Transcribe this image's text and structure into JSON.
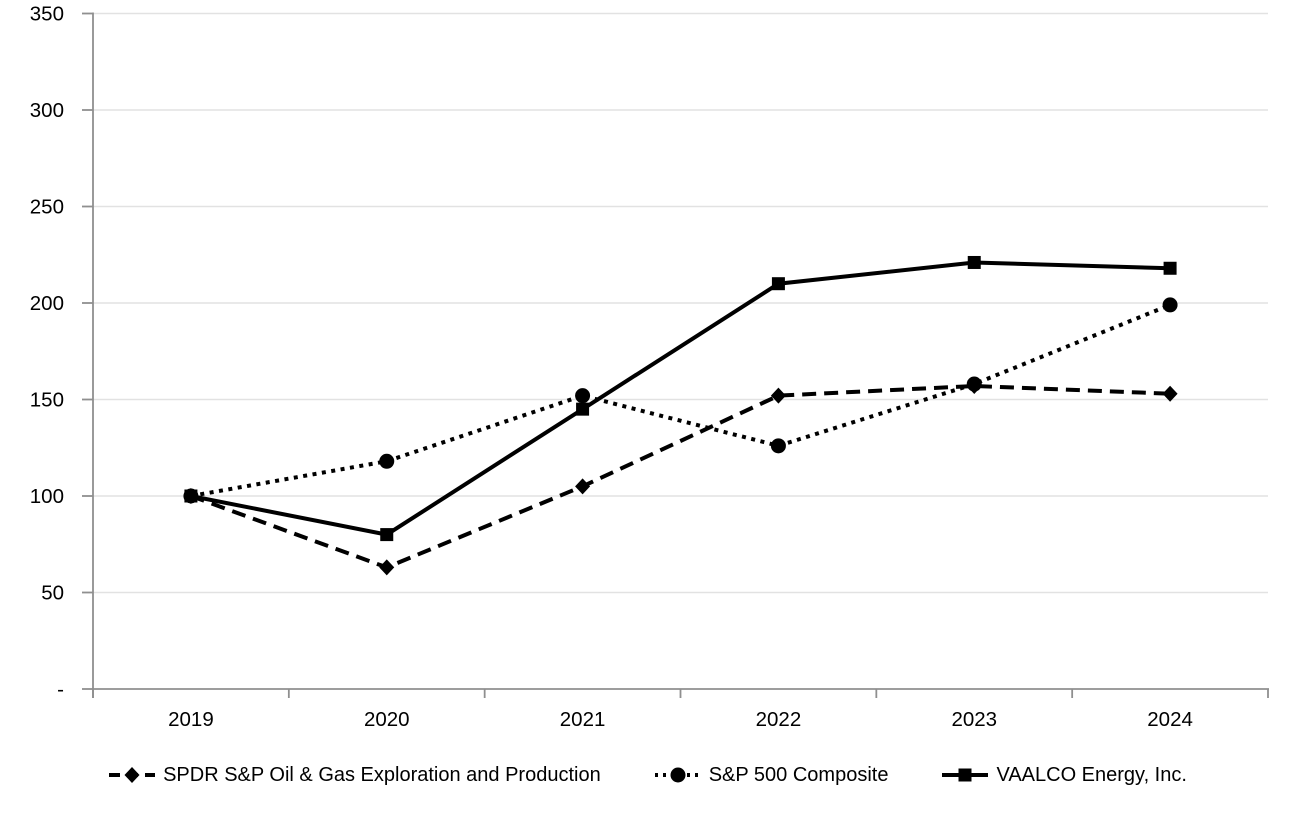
{
  "chart_data": {
    "type": "line",
    "title": "",
    "xlabel": "",
    "ylabel": "",
    "categories": [
      "2019",
      "2020",
      "2021",
      "2022",
      "2023",
      "2024"
    ],
    "series": [
      {
        "name": "SPDR S&P Oil & Gas Exploration and Production",
        "slug": "spdr-sp-oil-gas",
        "marker": "diamond",
        "line_style": "dashed",
        "values": [
          100,
          63,
          105,
          152,
          157,
          153
        ]
      },
      {
        "name": "S&P 500 Composite",
        "slug": "sp-500-composite",
        "marker": "circle",
        "line_style": "dotted",
        "values": [
          100,
          118,
          152,
          126,
          158,
          199
        ]
      },
      {
        "name": "VAALCO Energy, Inc.",
        "slug": "vaalco-energy",
        "marker": "square",
        "line_style": "solid",
        "values": [
          100,
          80,
          145,
          210,
          221,
          218
        ]
      }
    ],
    "ylim": [
      0,
      350
    ],
    "ytick_step": 50,
    "ytick_labels": [
      "-",
      "50",
      "100",
      "150",
      "200",
      "250",
      "300",
      "350"
    ],
    "grid": "horizontal",
    "legend_position": "bottom",
    "colors": {
      "series_line": "#000000",
      "axis": "#8f8f8f",
      "gridline": "#e2e2e2",
      "text": "#000000",
      "background": "#ffffff"
    }
  }
}
